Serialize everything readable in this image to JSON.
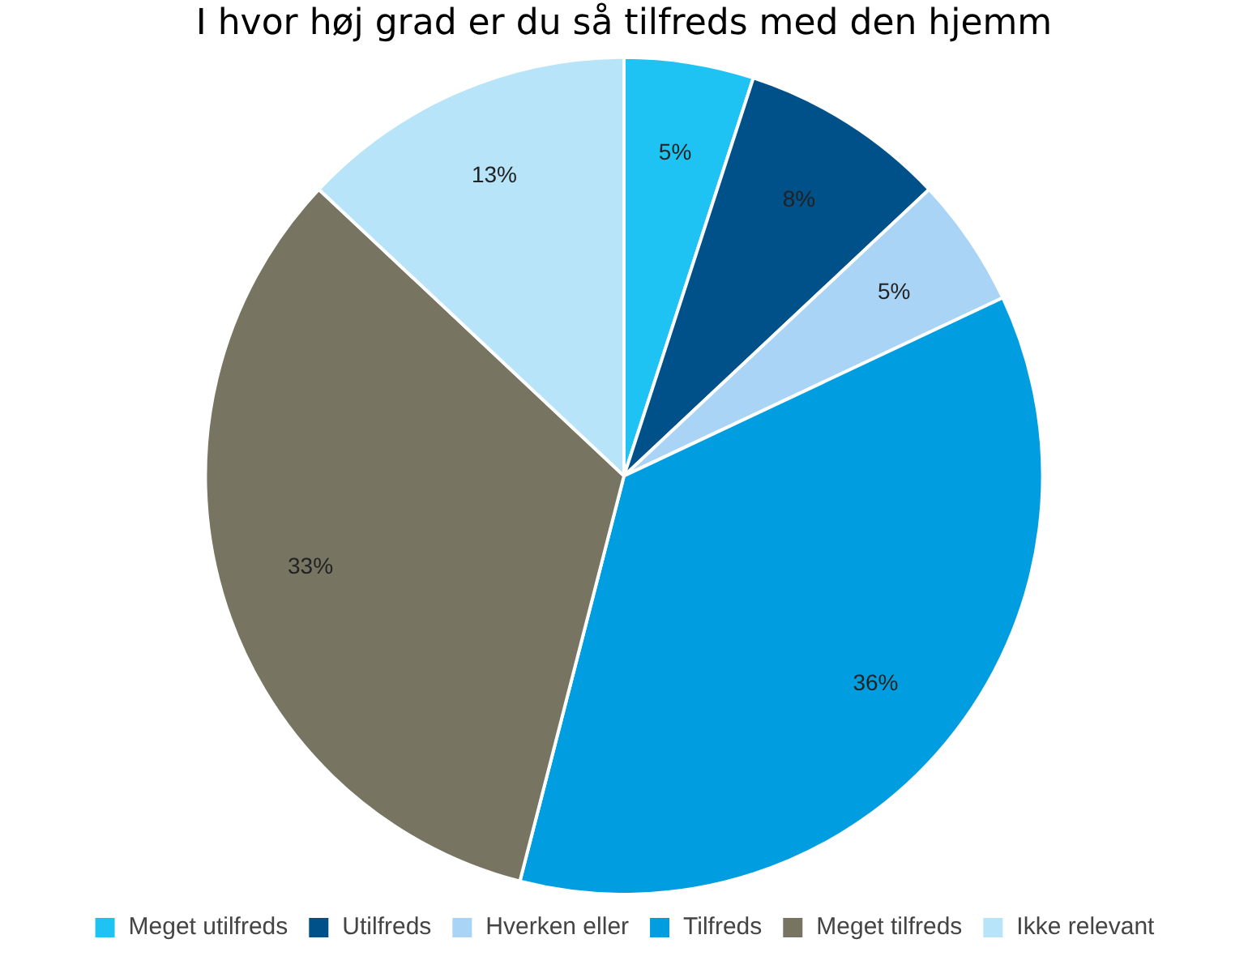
{
  "chart_data": {
    "type": "pie",
    "title": "I hvor høj grad er du så tilfreds med den hjemm",
    "categories": [
      "Meget utilfreds",
      "Utilfreds",
      "Hverken eller",
      "Tilfreds",
      "Meget tilfreds",
      "Ikke relevant"
    ],
    "values": [
      5,
      8,
      5,
      36,
      33,
      13
    ],
    "colors": [
      "#1fc3f3",
      "#00508a",
      "#a9d4f5",
      "#009ee0",
      "#777462",
      "#b8e4f9"
    ],
    "value_labels": [
      "5%",
      "8%",
      "5%",
      "36%",
      "33%",
      "13%"
    ],
    "legend": "bottom"
  }
}
